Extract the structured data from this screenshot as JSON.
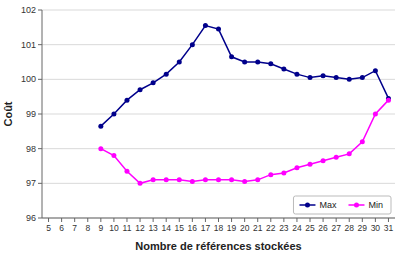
{
  "chart_data": {
    "type": "line",
    "xlabel": "Nombre de références stockées",
    "ylabel": "Coût",
    "x": [
      5,
      6,
      7,
      8,
      9,
      10,
      11,
      12,
      13,
      14,
      15,
      16,
      17,
      18,
      19,
      20,
      21,
      22,
      23,
      24,
      25,
      26,
      27,
      28,
      29,
      30,
      31
    ],
    "series": [
      {
        "name": "Max",
        "color": "#00008B",
        "values": [
          null,
          null,
          null,
          null,
          98.65,
          99.0,
          99.4,
          99.7,
          99.9,
          100.15,
          100.5,
          101.0,
          101.55,
          101.45,
          100.65,
          100.5,
          100.5,
          100.45,
          100.3,
          100.15,
          100.05,
          100.1,
          100.05,
          100.0,
          100.05,
          100.25,
          99.45
        ]
      },
      {
        "name": "Min",
        "color": "#FF00FF",
        "values": [
          null,
          null,
          null,
          null,
          98.0,
          97.8,
          97.35,
          97.0,
          97.1,
          97.1,
          97.1,
          97.05,
          97.1,
          97.1,
          97.1,
          97.05,
          97.1,
          97.25,
          97.3,
          97.45,
          97.55,
          97.65,
          97.75,
          97.85,
          98.2,
          99.0,
          99.4
        ]
      }
    ],
    "marker": "circle",
    "xlim": [
      4.5,
      31.5
    ],
    "xticks": [
      5,
      6,
      7,
      8,
      9,
      10,
      11,
      12,
      13,
      14,
      15,
      16,
      17,
      18,
      19,
      20,
      21,
      22,
      23,
      24,
      25,
      26,
      27,
      28,
      29,
      30,
      31
    ],
    "ylim": [
      96,
      102
    ],
    "yticks": [
      96,
      97,
      98,
      99,
      100,
      101,
      102
    ],
    "grid": true,
    "legend": "lower right"
  }
}
